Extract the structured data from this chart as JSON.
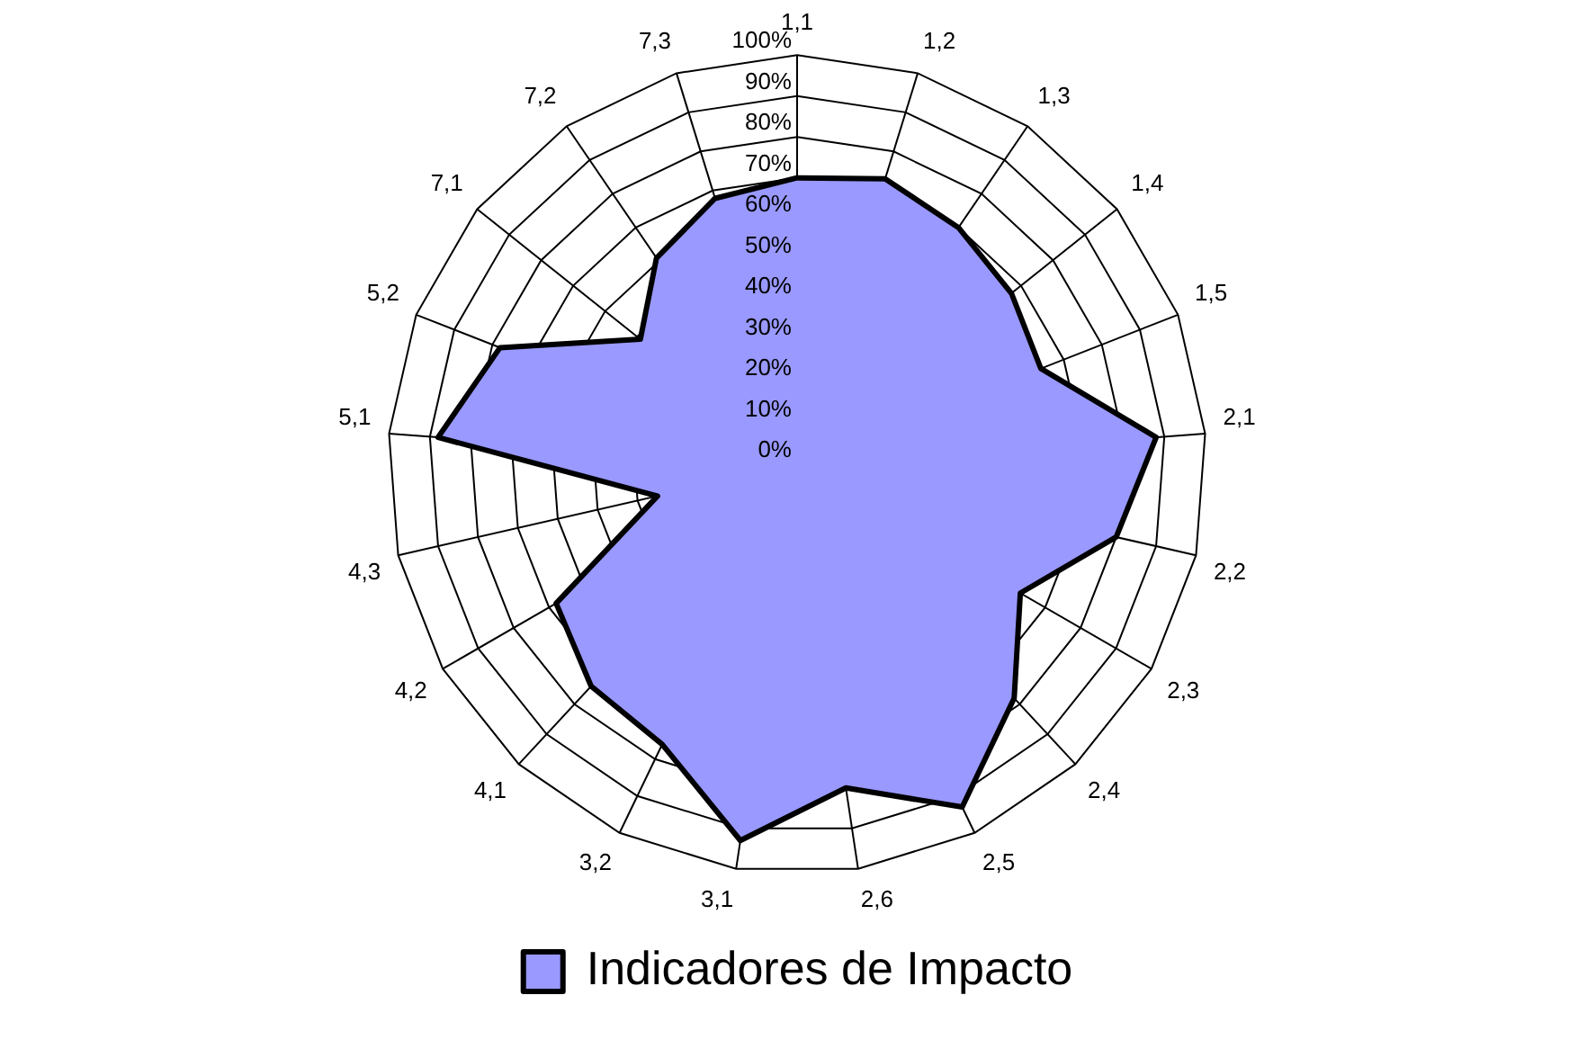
{
  "chart_data": {
    "type": "radar",
    "categories": [
      "1,1",
      "1,2",
      "1,3",
      "1,4",
      "1,5",
      "2,1",
      "2,2",
      "2,3",
      "2,4",
      "2,5",
      "2,6",
      "3,1",
      "3,2",
      "4,1",
      "4,2",
      "4,3",
      "5,1",
      "5,2",
      "7,1",
      "7,2",
      "7,3"
    ],
    "series": [
      {
        "name": "Indicadores de Impacto",
        "color": "#9999ff",
        "values": [
          70,
          73,
          70,
          67,
          64,
          88,
          80,
          63,
          78,
          93,
          80,
          93,
          76,
          74,
          68,
          35,
          88,
          78,
          49,
          61,
          68
        ]
      }
    ],
    "ylim": [
      0,
      100
    ],
    "yticks": [
      {
        "value": 0,
        "label": "0%"
      },
      {
        "value": 10,
        "label": "10%"
      },
      {
        "value": 20,
        "label": "20%"
      },
      {
        "value": 30,
        "label": "30%"
      },
      {
        "value": 40,
        "label": "40%"
      },
      {
        "value": 50,
        "label": "50%"
      },
      {
        "value": 60,
        "label": "60%"
      },
      {
        "value": 70,
        "label": "70%"
      },
      {
        "value": 80,
        "label": "80%"
      },
      {
        "value": 90,
        "label": "90%"
      },
      {
        "value": 100,
        "label": "100%"
      }
    ],
    "grid": true,
    "legend": "bottom",
    "marker": "none"
  }
}
